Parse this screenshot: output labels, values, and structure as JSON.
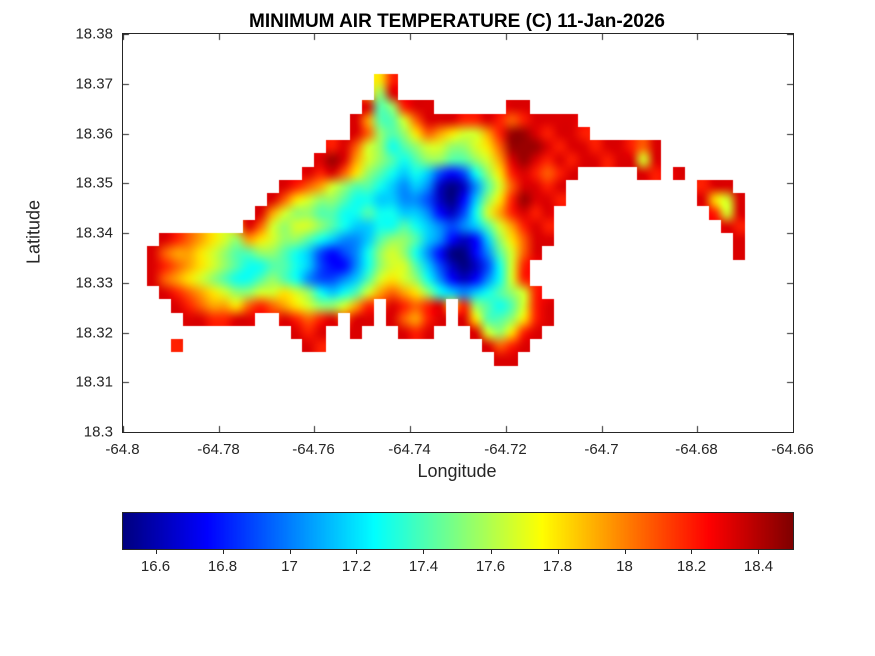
{
  "figure": {
    "title": "MINIMUM AIR TEMPERATURE (C) 11-Jan-2026",
    "background_color": "#ffffff"
  },
  "axes": {
    "xlabel": "Longitude",
    "ylabel": "Latitude",
    "xlim": [
      -64.8,
      -64.66
    ],
    "ylim": [
      18.3,
      18.38
    ],
    "x_ticks": [
      -64.8,
      -64.78,
      -64.76,
      -64.74,
      -64.72,
      -64.7,
      -64.68,
      -64.66
    ],
    "x_tick_labels": [
      "-64.8",
      "-64.78",
      "-64.76",
      "-64.74",
      "-64.72",
      "-64.7",
      "-64.68",
      "-64.66"
    ],
    "y_ticks": [
      18.3,
      18.31,
      18.32,
      18.33,
      18.34,
      18.35,
      18.36,
      18.37,
      18.38
    ],
    "y_tick_labels": [
      "18.3",
      "18.31",
      "18.32",
      "18.33",
      "18.34",
      "18.35",
      "18.36",
      "18.37",
      "18.38"
    ],
    "tick_color": "#262626",
    "box_color": "#262626"
  },
  "colorbar": {
    "orientation": "horizontal",
    "colormap": "jet",
    "min": 16.5,
    "max": 18.5,
    "ticks": [
      16.6,
      16.8,
      17,
      17.2,
      17.4,
      17.6,
      17.8,
      18,
      18.2,
      18.4
    ],
    "tick_labels": [
      "16.6",
      "16.8",
      "17",
      "17.2",
      "17.4",
      "17.6",
      "17.8",
      "18",
      "18.2",
      "18.4"
    ]
  },
  "chart_data": {
    "type": "heatmap",
    "title": "MINIMUM AIR TEMPERATURE (C) 11-Jan-2026",
    "variable": "minimum air temperature",
    "unit": "C",
    "date": "11-Jan-2026",
    "xlabel": "Longitude",
    "ylabel": "Latitude",
    "xlim": [
      -64.8,
      -64.66
    ],
    "ylim": [
      18.3,
      18.38
    ],
    "value_range": [
      16.5,
      18.5
    ],
    "colormap": "jet",
    "legend_position": "bottom",
    "grid_on": false,
    "grid": {
      "description": "Coarse raster of the mapped temperature field. Rows run north to south (lat 18.38 -> 18.30), columns west to east (lon -64.80 -> -64.66). '.' = ocean / no data; hex digit 0-f = temperature level where value_C = 16.5 + level * 0.13 (0 = 16.5 C coolest valleys, f = 18.45 C warmest coastal rim).",
      "ncols": 56,
      "nrows": 30,
      "lon_west": -64.8,
      "lon_east": -64.66,
      "lat_north": 18.38,
      "lat_south": 18.3,
      "level_min": 16.5,
      "level_step": 0.13,
      "rows": [
        "........................................................",
        "........................................................",
        "........................................................",
        ".....................ad.................................",
        ".....................8e.................................",
        "....................e78dee......ee......................",
        "...................eb779ceeeddedcdeeee..................",
        "...................ec878acba99bdffedeed.................",
        ".................dec9867899889acfffedeedeedce...........",
        "................efeb98767887789befededeedee9e...........",
        "...............edeca87656532368adedcde.....ed.e.........",
        ".............edcb987765454101479ceede...........dee.....",
        "............eca9887665544310258adfeed...........ea9e....",
        "...........eb988776676655421369bdede.............d9e....",
        "..........ec98998765566765434579bded..............ed....",
        "...edcba98ba98876544578875421258acee...............e....",
        "..ecbba98778876532346898642002479ce................e....",
        "..edcba98766776532246899753101369d......................",
        "..ecba9876678764334579a9864212469d......................",
        "...edcba98899a9865679bcba865456789d.....................",
        "....edcbbacdcba9889bd.edcde.d87679de....................",
        ".....eeddee..edcde.ee.ecbde.ea778ade....................",
        "..............ede..e...ede...e98ade.....................",
        "....d..........ed.............ecde......................",
        "...............................ee.......................",
        "........................................................",
        "........................................................",
        "........................................................",
        "........................................................",
        "........................................................"
      ]
    }
  }
}
